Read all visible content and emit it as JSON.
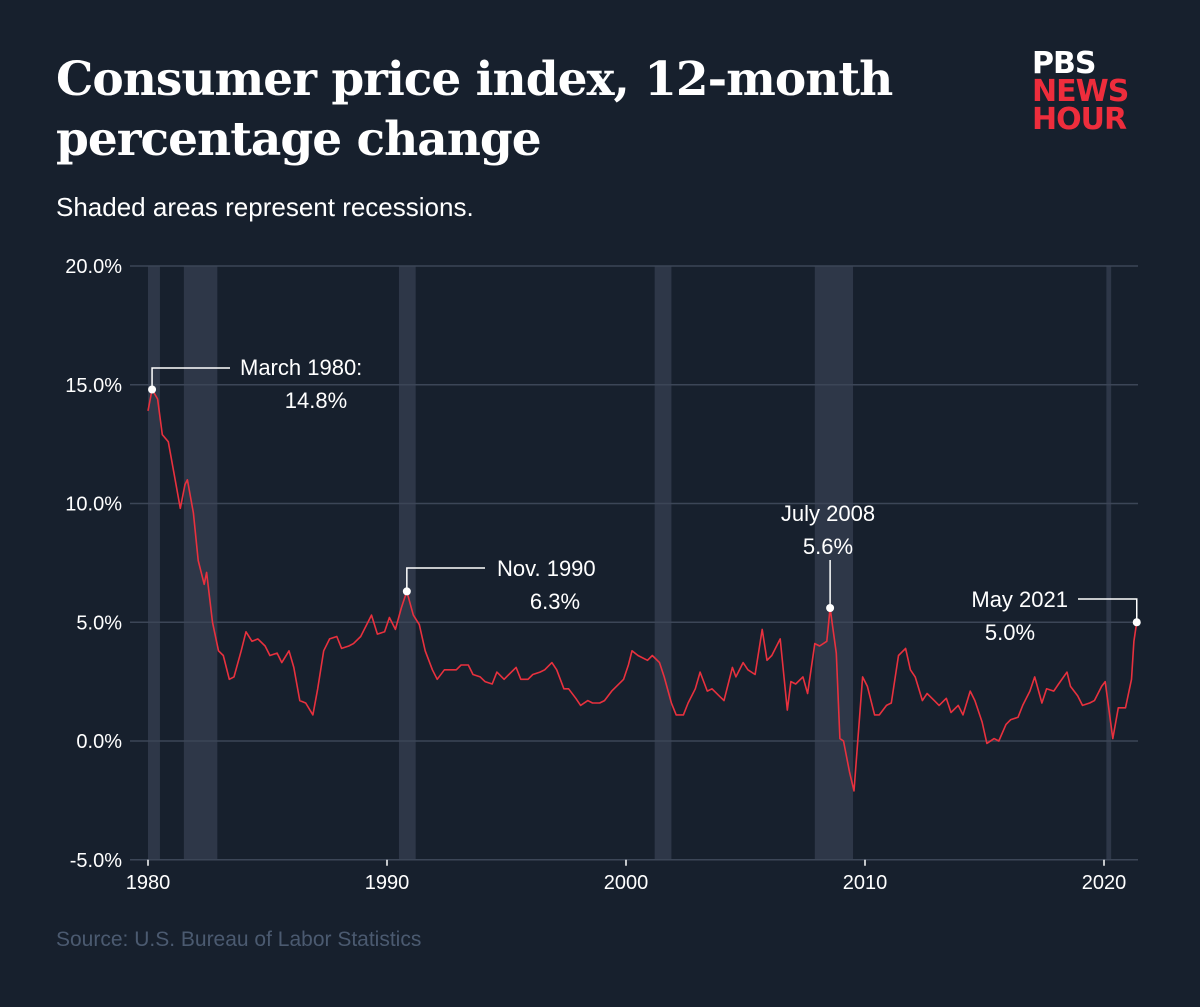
{
  "title": "Consumer price index, 12-month percentage change",
  "subtitle": "Shaded areas represent recessions.",
  "source": "Source: U.S. Bureau of Labor Statistics",
  "logo": {
    "line1": "PBS",
    "line2": "NEWS",
    "line3": "HOUR"
  },
  "colors": {
    "background": "#17202d",
    "line": "#e8313e",
    "recession": "#2e3748",
    "grid": "#3c4657",
    "logo_red": "#ee2d3c"
  },
  "chart_data": {
    "type": "line",
    "title": "Consumer price index, 12-month percentage change",
    "xlabel": "",
    "ylabel": "",
    "xlim": [
      1980,
      2021.4
    ],
    "ylim": [
      -5,
      20
    ],
    "y_ticks": [
      {
        "value": 20,
        "label": "20.0%"
      },
      {
        "value": 15,
        "label": "15.0%"
      },
      {
        "value": 10,
        "label": "10.0%"
      },
      {
        "value": 5,
        "label": "5.0%"
      },
      {
        "value": 0,
        "label": "0.0%"
      },
      {
        "value": -5,
        "label": "-5.0%"
      }
    ],
    "x_ticks": [
      {
        "value": 1980,
        "label": "1980"
      },
      {
        "value": 1990,
        "label": "1990"
      },
      {
        "value": 2000,
        "label": "2000"
      },
      {
        "value": 2010,
        "label": "2010"
      },
      {
        "value": 2020,
        "label": "2020"
      }
    ],
    "grid": "horizontal",
    "recessions": [
      [
        1980.0,
        1980.5
      ],
      [
        1981.5,
        1982.9
      ],
      [
        1990.5,
        1991.2
      ],
      [
        2001.2,
        2001.9
      ],
      [
        2007.9,
        2009.5
      ],
      [
        2020.1,
        2020.3
      ]
    ],
    "series": [
      {
        "points": [
          [
            1980.0,
            13.9
          ],
          [
            1980.17,
            14.8
          ],
          [
            1980.4,
            14.4
          ],
          [
            1980.6,
            12.9
          ],
          [
            1980.85,
            12.6
          ],
          [
            1981.1,
            11.2
          ],
          [
            1981.35,
            9.8
          ],
          [
            1981.55,
            10.8
          ],
          [
            1981.65,
            11.0
          ],
          [
            1981.9,
            9.6
          ],
          [
            1982.1,
            7.6
          ],
          [
            1982.35,
            6.6
          ],
          [
            1982.45,
            7.1
          ],
          [
            1982.7,
            5.0
          ],
          [
            1982.95,
            3.8
          ],
          [
            1983.15,
            3.6
          ],
          [
            1983.4,
            2.6
          ],
          [
            1983.6,
            2.7
          ],
          [
            1983.9,
            3.8
          ],
          [
            1984.1,
            4.6
          ],
          [
            1984.35,
            4.2
          ],
          [
            1984.6,
            4.3
          ],
          [
            1984.9,
            4.0
          ],
          [
            1985.1,
            3.6
          ],
          [
            1985.4,
            3.7
          ],
          [
            1985.6,
            3.3
          ],
          [
            1985.9,
            3.8
          ],
          [
            1986.1,
            3.1
          ],
          [
            1986.35,
            1.7
          ],
          [
            1986.6,
            1.6
          ],
          [
            1986.9,
            1.1
          ],
          [
            1987.1,
            2.2
          ],
          [
            1987.35,
            3.8
          ],
          [
            1987.6,
            4.3
          ],
          [
            1987.9,
            4.4
          ],
          [
            1988.1,
            3.9
          ],
          [
            1988.4,
            4.0
          ],
          [
            1988.6,
            4.1
          ],
          [
            1988.9,
            4.4
          ],
          [
            1989.1,
            4.8
          ],
          [
            1989.35,
            5.3
          ],
          [
            1989.6,
            4.5
          ],
          [
            1989.9,
            4.6
          ],
          [
            1990.1,
            5.2
          ],
          [
            1990.35,
            4.7
          ],
          [
            1990.6,
            5.6
          ],
          [
            1990.83,
            6.3
          ],
          [
            1991.1,
            5.3
          ],
          [
            1991.35,
            4.9
          ],
          [
            1991.6,
            3.8
          ],
          [
            1991.9,
            3.0
          ],
          [
            1992.1,
            2.6
          ],
          [
            1992.4,
            3.0
          ],
          [
            1992.6,
            3.0
          ],
          [
            1992.9,
            3.0
          ],
          [
            1993.1,
            3.2
          ],
          [
            1993.4,
            3.2
          ],
          [
            1993.6,
            2.8
          ],
          [
            1993.9,
            2.7
          ],
          [
            1994.1,
            2.5
          ],
          [
            1994.4,
            2.4
          ],
          [
            1994.6,
            2.9
          ],
          [
            1994.9,
            2.6
          ],
          [
            1995.1,
            2.8
          ],
          [
            1995.4,
            3.1
          ],
          [
            1995.6,
            2.6
          ],
          [
            1995.9,
            2.6
          ],
          [
            1996.1,
            2.8
          ],
          [
            1996.4,
            2.9
          ],
          [
            1996.6,
            3.0
          ],
          [
            1996.9,
            3.3
          ],
          [
            1997.1,
            3.0
          ],
          [
            1997.4,
            2.2
          ],
          [
            1997.6,
            2.2
          ],
          [
            1997.9,
            1.8
          ],
          [
            1998.1,
            1.5
          ],
          [
            1998.4,
            1.7
          ],
          [
            1998.6,
            1.6
          ],
          [
            1998.9,
            1.6
          ],
          [
            1999.1,
            1.7
          ],
          [
            1999.4,
            2.1
          ],
          [
            1999.6,
            2.3
          ],
          [
            1999.9,
            2.6
          ],
          [
            2000.1,
            3.2
          ],
          [
            2000.25,
            3.8
          ],
          [
            2000.5,
            3.6
          ],
          [
            2000.9,
            3.4
          ],
          [
            2001.1,
            3.6
          ],
          [
            2001.4,
            3.3
          ],
          [
            2001.6,
            2.7
          ],
          [
            2001.9,
            1.6
          ],
          [
            2002.1,
            1.1
          ],
          [
            2002.4,
            1.1
          ],
          [
            2002.6,
            1.6
          ],
          [
            2002.9,
            2.2
          ],
          [
            2003.1,
            2.9
          ],
          [
            2003.4,
            2.1
          ],
          [
            2003.6,
            2.2
          ],
          [
            2003.9,
            1.9
          ],
          [
            2004.1,
            1.7
          ],
          [
            2004.45,
            3.1
          ],
          [
            2004.6,
            2.7
          ],
          [
            2004.9,
            3.3
          ],
          [
            2005.1,
            3.0
          ],
          [
            2005.4,
            2.8
          ],
          [
            2005.7,
            4.7
          ],
          [
            2005.9,
            3.4
          ],
          [
            2006.1,
            3.6
          ],
          [
            2006.45,
            4.3
          ],
          [
            2006.75,
            1.3
          ],
          [
            2006.9,
            2.5
          ],
          [
            2007.1,
            2.4
          ],
          [
            2007.4,
            2.7
          ],
          [
            2007.6,
            2.0
          ],
          [
            2007.9,
            4.1
          ],
          [
            2008.1,
            4.0
          ],
          [
            2008.4,
            4.2
          ],
          [
            2008.54,
            5.6
          ],
          [
            2008.8,
            3.7
          ],
          [
            2008.95,
            0.1
          ],
          [
            2009.1,
            0.0
          ],
          [
            2009.35,
            -1.3
          ],
          [
            2009.54,
            -2.1
          ],
          [
            2009.9,
            2.7
          ],
          [
            2010.1,
            2.3
          ],
          [
            2010.4,
            1.1
          ],
          [
            2010.6,
            1.1
          ],
          [
            2010.9,
            1.5
          ],
          [
            2011.1,
            1.6
          ],
          [
            2011.4,
            3.6
          ],
          [
            2011.7,
            3.9
          ],
          [
            2011.9,
            3.0
          ],
          [
            2012.1,
            2.7
          ],
          [
            2012.4,
            1.7
          ],
          [
            2012.6,
            2.0
          ],
          [
            2012.9,
            1.7
          ],
          [
            2013.1,
            1.5
          ],
          [
            2013.4,
            1.8
          ],
          [
            2013.6,
            1.2
          ],
          [
            2013.9,
            1.5
          ],
          [
            2014.1,
            1.1
          ],
          [
            2014.4,
            2.1
          ],
          [
            2014.6,
            1.7
          ],
          [
            2014.9,
            0.8
          ],
          [
            2015.1,
            -0.1
          ],
          [
            2015.4,
            0.1
          ],
          [
            2015.6,
            0.0
          ],
          [
            2015.9,
            0.7
          ],
          [
            2016.1,
            0.9
          ],
          [
            2016.4,
            1.0
          ],
          [
            2016.6,
            1.5
          ],
          [
            2016.9,
            2.1
          ],
          [
            2017.1,
            2.7
          ],
          [
            2017.4,
            1.6
          ],
          [
            2017.6,
            2.2
          ],
          [
            2017.9,
            2.1
          ],
          [
            2018.1,
            2.4
          ],
          [
            2018.45,
            2.9
          ],
          [
            2018.6,
            2.3
          ],
          [
            2018.9,
            1.9
          ],
          [
            2019.1,
            1.5
          ],
          [
            2019.4,
            1.6
          ],
          [
            2019.6,
            1.7
          ],
          [
            2019.9,
            2.3
          ],
          [
            2020.05,
            2.5
          ],
          [
            2020.37,
            0.1
          ],
          [
            2020.6,
            1.4
          ],
          [
            2020.9,
            1.4
          ],
          [
            2021.15,
            2.6
          ],
          [
            2021.25,
            4.2
          ],
          [
            2021.37,
            5.0
          ]
        ]
      }
    ],
    "annotations": [
      {
        "label": "March 1980:",
        "value_label": "14.8%",
        "x": 1980.17,
        "y": 14.8
      },
      {
        "label": "Nov. 1990",
        "value_label": "6.3%",
        "x": 1990.83,
        "y": 6.3
      },
      {
        "label": "July 2008",
        "value_label": "5.6%",
        "x": 2008.54,
        "y": 5.6
      },
      {
        "label": "May 2021",
        "value_label": "5.0%",
        "x": 2021.37,
        "y": 5.0
      }
    ]
  }
}
